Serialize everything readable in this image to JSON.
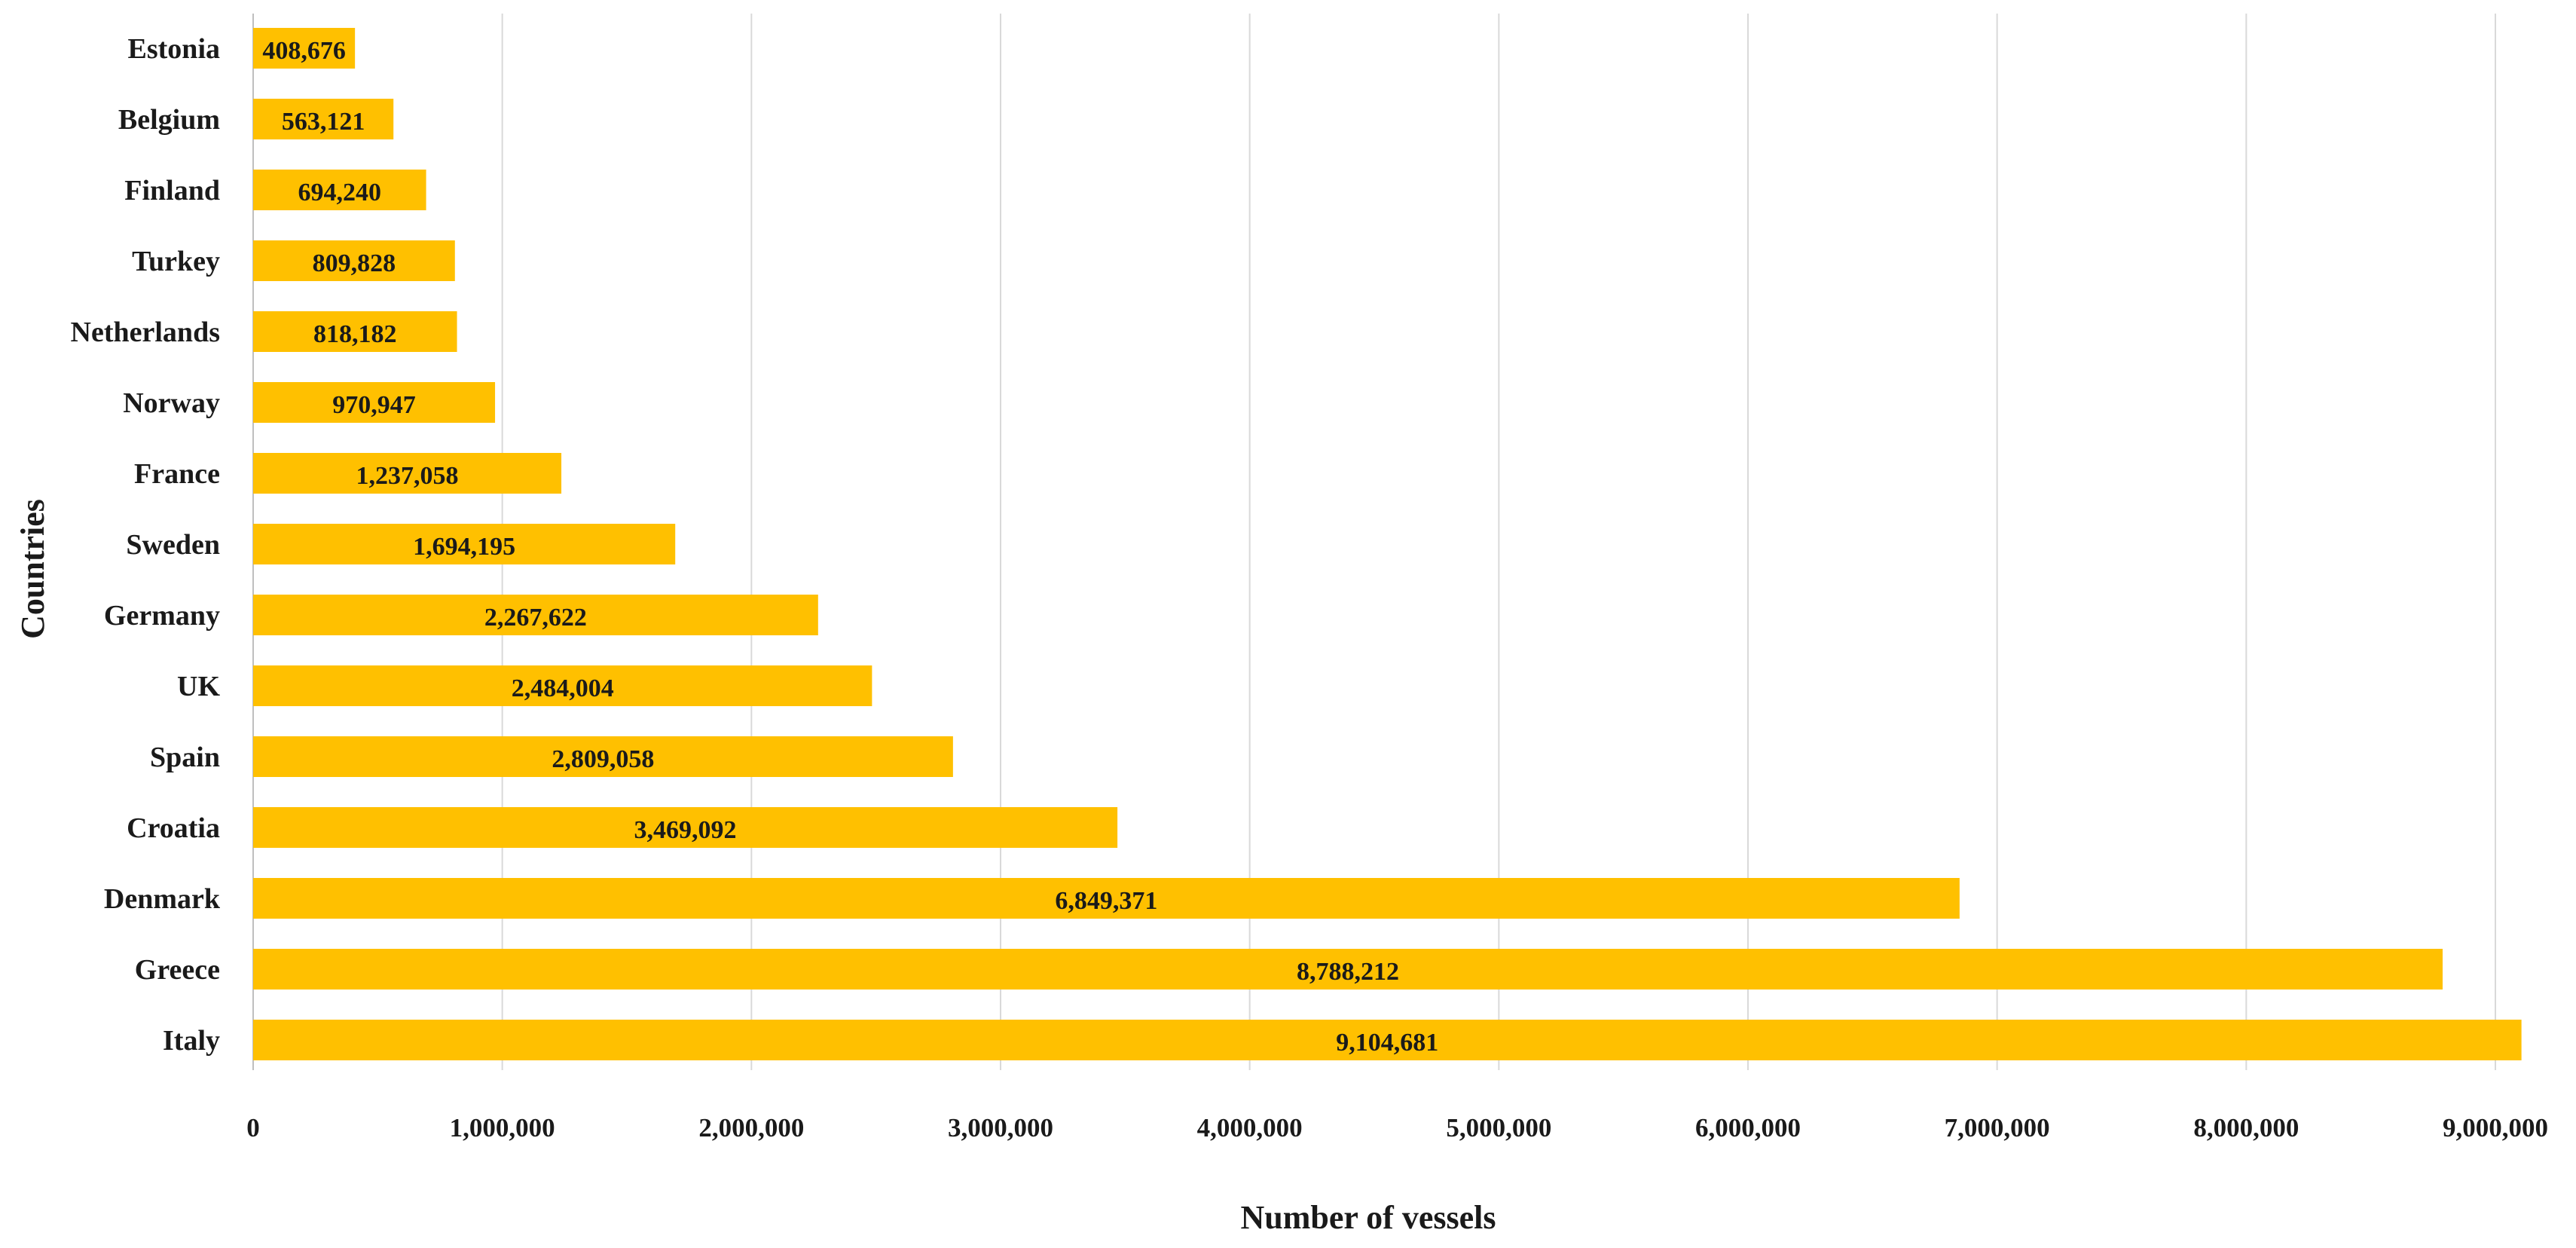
{
  "chart_data": {
    "type": "bar",
    "orientation": "horizontal",
    "title": "",
    "xlabel": "Number of vessels",
    "ylabel": "Countries",
    "categories": [
      "Estonia",
      "Belgium",
      "Finland",
      "Turkey",
      "Netherlands",
      "Norway",
      "France",
      "Sweden",
      "Germany",
      "UK",
      "Spain",
      "Croatia",
      "Denmark",
      "Greece",
      "Italy"
    ],
    "values": [
      408676,
      563121,
      694240,
      809828,
      818182,
      970947,
      1237058,
      1694195,
      2267622,
      2484004,
      2809058,
      3469092,
      6849371,
      8788212,
      9104681
    ],
    "value_labels": [
      "408,676",
      "563,121",
      "694,240",
      "809,828",
      "818,182",
      "970,947",
      "1,237,058",
      "1,694,195",
      "2,267,622",
      "2,484,004",
      "2,809,058",
      "3,469,092",
      "6,849,371",
      "8,788,212",
      "9,104,681"
    ],
    "xticks": [
      0,
      1000000,
      2000000,
      3000000,
      4000000,
      5000000,
      6000000,
      7000000,
      8000000,
      9000000
    ],
    "xtick_labels": [
      "0",
      "1,000,000",
      "2,000,000",
      "3,000,000",
      "4,000,000",
      "5,000,000",
      "6,000,000",
      "7,000,000",
      "8,000,000",
      "9,000,000"
    ],
    "xlim": [
      0,
      9000000
    ],
    "grid": "vertical",
    "legend": "none",
    "bar_color": "#FFC000",
    "grid_color": "#d9d9d9"
  }
}
